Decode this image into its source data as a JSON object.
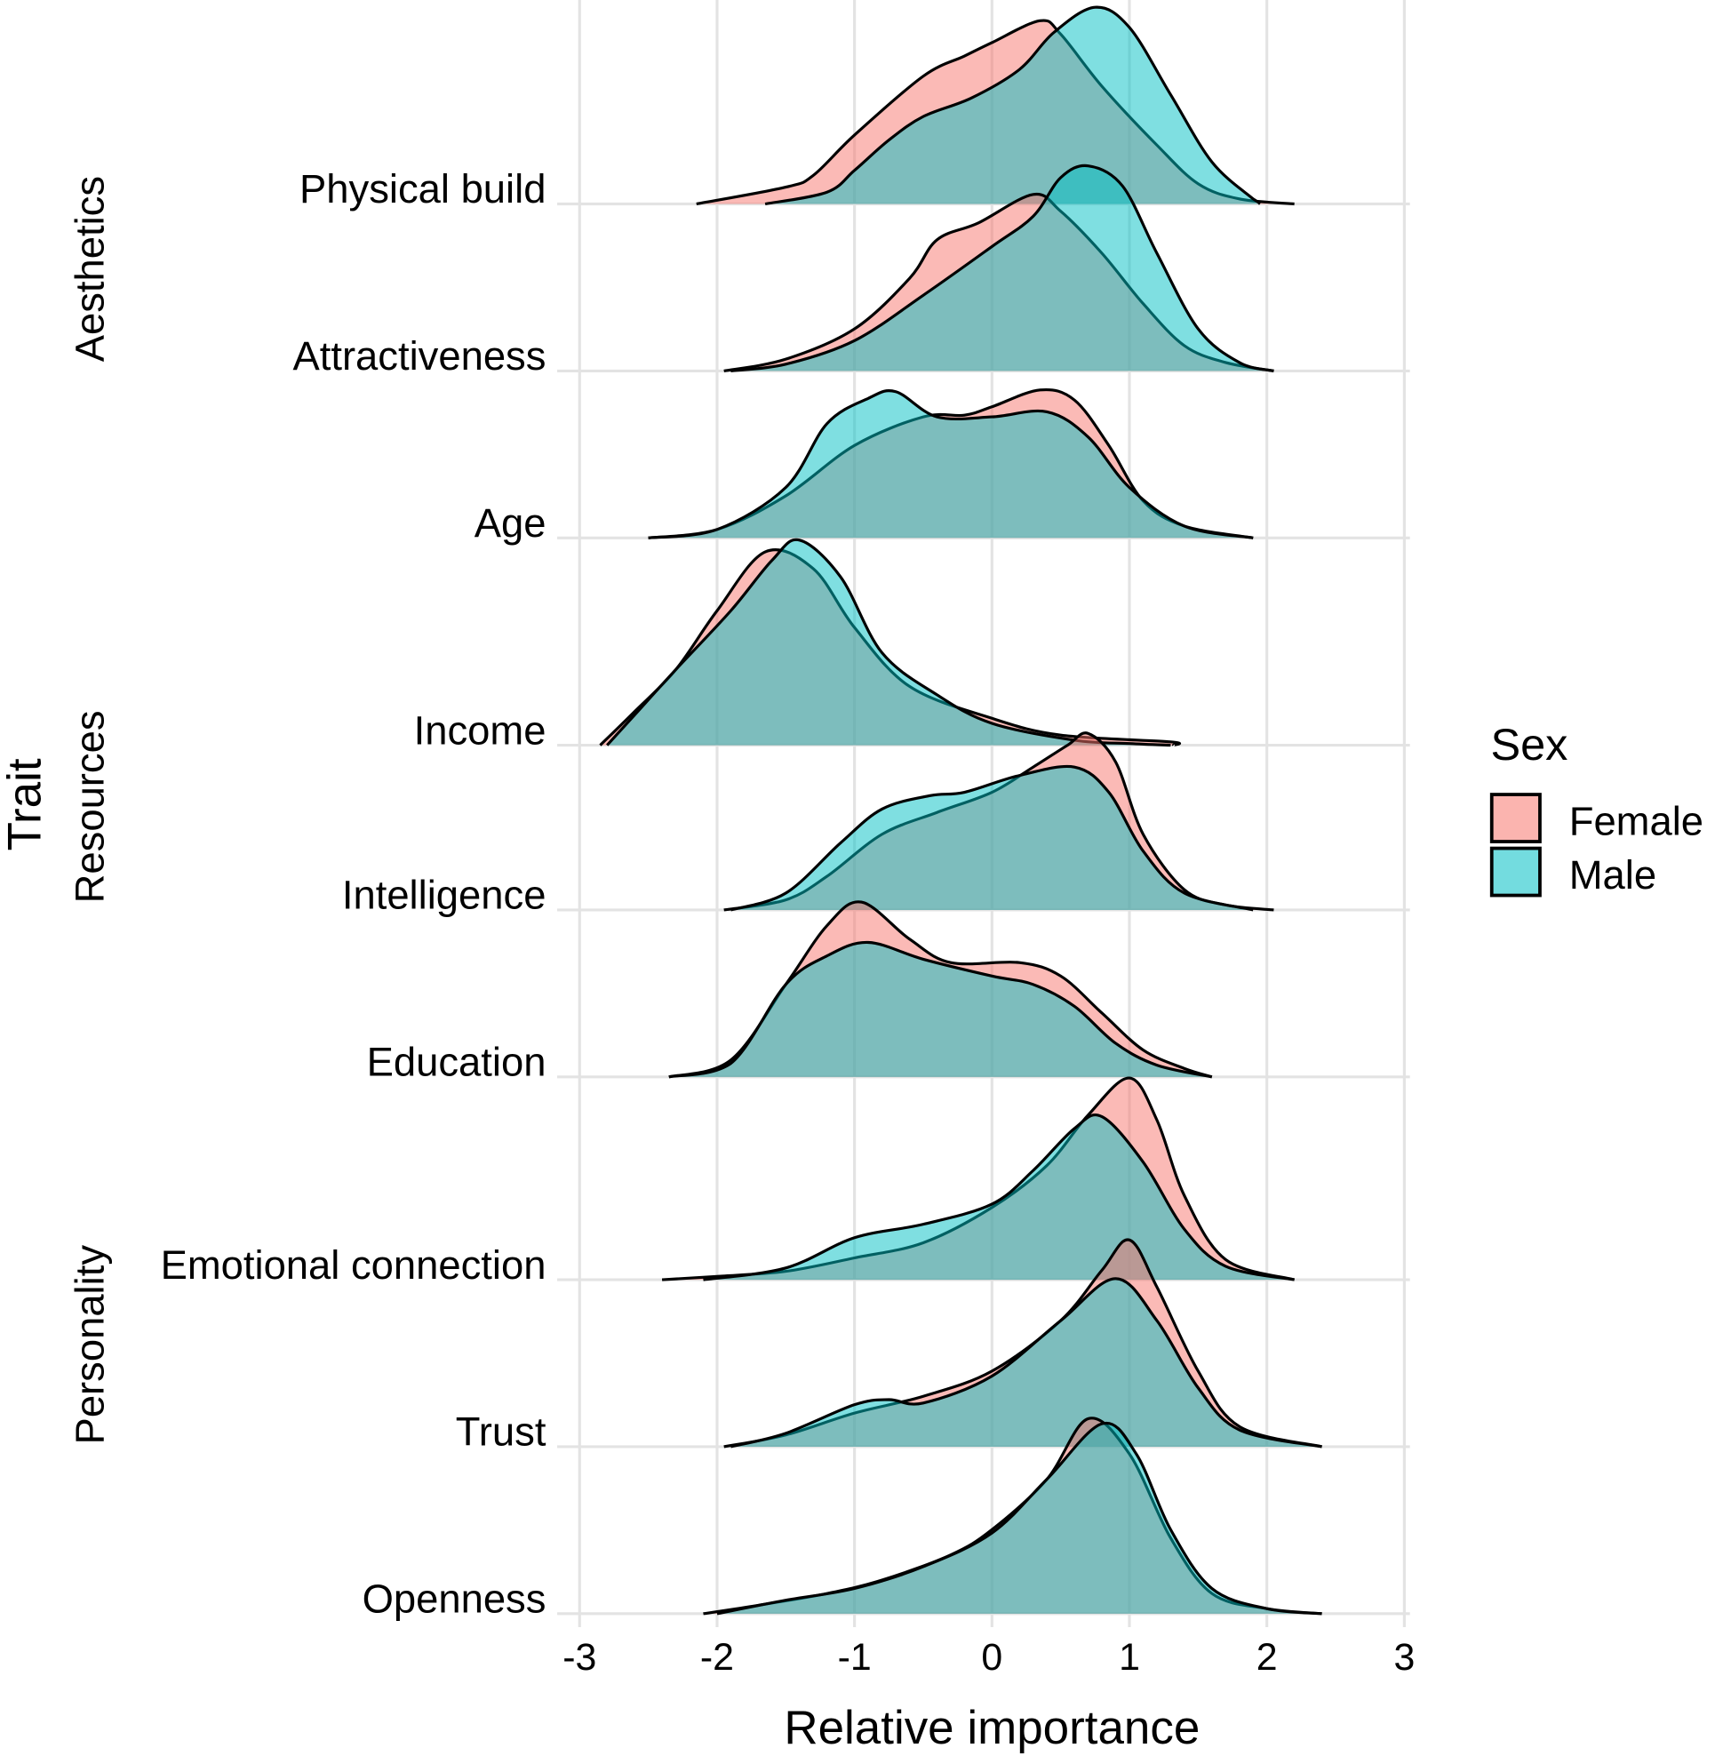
{
  "chart_data": {
    "type": "ridgeline density",
    "xlabel": "Relative importance",
    "ylabel": "Trait",
    "xlim": [
      -3,
      3
    ],
    "xticks": [
      -3,
      -2,
      -1,
      0,
      1,
      2,
      3
    ],
    "grid": true,
    "legend": {
      "title": "Sex",
      "placement": "right",
      "entries": [
        {
          "name": "Female",
          "color": "#F8766D"
        },
        {
          "name": "Male",
          "color": "#00BFC4"
        }
      ]
    },
    "groups": [
      {
        "label": "Aesthetics",
        "traits": [
          "Physical build",
          "Attractiveness"
        ]
      },
      {
        "label": "Resources",
        "traits": [
          "Age",
          "Income",
          "Intelligence",
          "Education"
        ]
      },
      {
        "label": "Personality",
        "traits": [
          "Emotional connection",
          "Trust",
          "Openness"
        ]
      }
    ],
    "density_unit_note": "relative ridge height",
    "traits": [
      {
        "name": "Physical build",
        "Female": [
          [
            -2.15,
            0
          ],
          [
            -1.5,
            0.1
          ],
          [
            -1.3,
            0.17
          ],
          [
            -1,
            0.41
          ],
          [
            -0.5,
            0.76
          ],
          [
            -0.2,
            0.88
          ],
          [
            0,
            0.96
          ],
          [
            0.35,
            1.09
          ],
          [
            0.5,
            1.01
          ],
          [
            0.8,
            0.7
          ],
          [
            1.2,
            0.35
          ],
          [
            1.5,
            0.12
          ],
          [
            1.8,
            0.03
          ],
          [
            2.2,
            0
          ]
        ],
        "Male": [
          [
            -1.65,
            0
          ],
          [
            -1.2,
            0.07
          ],
          [
            -1,
            0.2
          ],
          [
            -0.75,
            0.38
          ],
          [
            -0.5,
            0.52
          ],
          [
            -0.15,
            0.63
          ],
          [
            0.2,
            0.8
          ],
          [
            0.45,
            1.02
          ],
          [
            0.75,
            1.17
          ],
          [
            1.0,
            1.05
          ],
          [
            1.3,
            0.65
          ],
          [
            1.6,
            0.25
          ],
          [
            1.9,
            0.03
          ],
          [
            1.95,
            0
          ]
        ]
      },
      {
        "name": "Attractiveness",
        "Female": [
          [
            -1.95,
            0
          ],
          [
            -1.5,
            0.07
          ],
          [
            -1,
            0.25
          ],
          [
            -0.6,
            0.55
          ],
          [
            -0.4,
            0.78
          ],
          [
            -0.1,
            0.88
          ],
          [
            0.3,
            1.05
          ],
          [
            0.5,
            0.95
          ],
          [
            0.8,
            0.7
          ],
          [
            1.1,
            0.4
          ],
          [
            1.4,
            0.15
          ],
          [
            1.7,
            0.05
          ],
          [
            2.05,
            0
          ]
        ],
        "Male": [
          [
            -1.9,
            0
          ],
          [
            -1.5,
            0.04
          ],
          [
            -1,
            0.18
          ],
          [
            -0.5,
            0.45
          ],
          [
            0,
            0.74
          ],
          [
            0.3,
            0.92
          ],
          [
            0.5,
            1.15
          ],
          [
            0.7,
            1.22
          ],
          [
            0.95,
            1.1
          ],
          [
            1.2,
            0.7
          ],
          [
            1.5,
            0.25
          ],
          [
            1.8,
            0.05
          ],
          [
            2.05,
            0
          ]
        ]
      },
      {
        "name": "Age",
        "Female": [
          [
            -2.5,
            0
          ],
          [
            -2,
            0.05
          ],
          [
            -1.5,
            0.25
          ],
          [
            -1,
            0.55
          ],
          [
            -0.5,
            0.72
          ],
          [
            -0.2,
            0.73
          ],
          [
            0,
            0.78
          ],
          [
            0.35,
            0.88
          ],
          [
            0.6,
            0.82
          ],
          [
            0.85,
            0.55
          ],
          [
            1.1,
            0.22
          ],
          [
            1.4,
            0.07
          ],
          [
            1.9,
            0
          ]
        ],
        "Male": [
          [
            -2.5,
            0
          ],
          [
            -2,
            0.05
          ],
          [
            -1.5,
            0.3
          ],
          [
            -1.2,
            0.68
          ],
          [
            -0.9,
            0.83
          ],
          [
            -0.7,
            0.87
          ],
          [
            -0.4,
            0.72
          ],
          [
            0,
            0.72
          ],
          [
            0.4,
            0.75
          ],
          [
            0.7,
            0.6
          ],
          [
            1,
            0.3
          ],
          [
            1.4,
            0.07
          ],
          [
            1.9,
            0
          ]
        ]
      },
      {
        "name": "Income",
        "Female": [
          [
            -2.85,
            0
          ],
          [
            -2.6,
            0.2
          ],
          [
            -2.3,
            0.45
          ],
          [
            -2,
            0.8
          ],
          [
            -1.65,
            1.15
          ],
          [
            -1.3,
            1.05
          ],
          [
            -1,
            0.7
          ],
          [
            -0.6,
            0.35
          ],
          [
            0,
            0.16
          ],
          [
            0.5,
            0.06
          ],
          [
            1.3,
            0.02
          ],
          [
            1.32,
            0
          ]
        ],
        "Male": [
          [
            -2.8,
            0
          ],
          [
            -2.6,
            0.18
          ],
          [
            -2.3,
            0.45
          ],
          [
            -1.9,
            0.8
          ],
          [
            -1.6,
            1.1
          ],
          [
            -1.4,
            1.22
          ],
          [
            -1.1,
            1.0
          ],
          [
            -0.8,
            0.55
          ],
          [
            -0.4,
            0.3
          ],
          [
            0,
            0.13
          ],
          [
            0.6,
            0.03
          ],
          [
            1.0,
            0.01
          ],
          [
            1.3,
            0
          ]
        ]
      },
      {
        "name": "Intelligence",
        "Female": [
          [
            -1.95,
            0
          ],
          [
            -1.5,
            0.06
          ],
          [
            -1.2,
            0.2
          ],
          [
            -0.8,
            0.45
          ],
          [
            -0.4,
            0.58
          ],
          [
            0,
            0.7
          ],
          [
            0.3,
            0.85
          ],
          [
            0.55,
            0.98
          ],
          [
            0.7,
            1.05
          ],
          [
            0.9,
            0.88
          ],
          [
            1.1,
            0.45
          ],
          [
            1.4,
            0.12
          ],
          [
            1.7,
            0.03
          ],
          [
            2.05,
            0
          ]
        ],
        "Male": [
          [
            -1.9,
            0
          ],
          [
            -1.5,
            0.1
          ],
          [
            -1.1,
            0.4
          ],
          [
            -0.8,
            0.6
          ],
          [
            -0.45,
            0.68
          ],
          [
            -0.2,
            0.7
          ],
          [
            0.2,
            0.8
          ],
          [
            0.6,
            0.85
          ],
          [
            0.85,
            0.7
          ],
          [
            1.1,
            0.35
          ],
          [
            1.4,
            0.1
          ],
          [
            1.9,
            0
          ]
        ]
      },
      {
        "name": "Education",
        "Female": [
          [
            -2.35,
            0
          ],
          [
            -1.9,
            0.1
          ],
          [
            -1.5,
            0.55
          ],
          [
            -1.2,
            0.9
          ],
          [
            -0.95,
            1.04
          ],
          [
            -0.6,
            0.82
          ],
          [
            -0.3,
            0.68
          ],
          [
            0.2,
            0.68
          ],
          [
            0.5,
            0.6
          ],
          [
            0.8,
            0.38
          ],
          [
            1.1,
            0.16
          ],
          [
            1.4,
            0.05
          ],
          [
            1.6,
            0
          ]
        ],
        "Male": [
          [
            -2.35,
            0
          ],
          [
            -1.9,
            0.08
          ],
          [
            -1.5,
            0.55
          ],
          [
            -1.2,
            0.72
          ],
          [
            -0.9,
            0.8
          ],
          [
            -0.5,
            0.7
          ],
          [
            0,
            0.6
          ],
          [
            0.3,
            0.55
          ],
          [
            0.6,
            0.42
          ],
          [
            0.9,
            0.2
          ],
          [
            1.2,
            0.07
          ],
          [
            1.6,
            0
          ]
        ]
      },
      {
        "name": "Emotional connection",
        "Female": [
          [
            -2.4,
            0
          ],
          [
            -2,
            0.02
          ],
          [
            -1.5,
            0.05
          ],
          [
            -1,
            0.13
          ],
          [
            -0.5,
            0.22
          ],
          [
            0,
            0.43
          ],
          [
            0.4,
            0.68
          ],
          [
            0.7,
            0.98
          ],
          [
            1,
            1.2
          ],
          [
            1.2,
            0.95
          ],
          [
            1.4,
            0.5
          ],
          [
            1.7,
            0.12
          ],
          [
            2.2,
            0
          ]
        ],
        "Male": [
          [
            -2.1,
            0
          ],
          [
            -1.5,
            0.07
          ],
          [
            -1,
            0.25
          ],
          [
            -0.5,
            0.33
          ],
          [
            0,
            0.45
          ],
          [
            0.3,
            0.65
          ],
          [
            0.6,
            0.9
          ],
          [
            0.8,
            0.97
          ],
          [
            1.1,
            0.7
          ],
          [
            1.4,
            0.3
          ],
          [
            1.7,
            0.08
          ],
          [
            2.2,
            0
          ]
        ]
      },
      {
        "name": "Trust",
        "Female": [
          [
            -1.95,
            0
          ],
          [
            -1.5,
            0.07
          ],
          [
            -1,
            0.2
          ],
          [
            -0.5,
            0.3
          ],
          [
            0,
            0.45
          ],
          [
            0.5,
            0.75
          ],
          [
            0.8,
            1.05
          ],
          [
            1.0,
            1.23
          ],
          [
            1.2,
            0.95
          ],
          [
            1.5,
            0.45
          ],
          [
            1.8,
            0.12
          ],
          [
            2.4,
            0
          ]
        ],
        "Male": [
          [
            -1.9,
            0
          ],
          [
            -1.5,
            0.08
          ],
          [
            -1,
            0.25
          ],
          [
            -0.75,
            0.28
          ],
          [
            -0.5,
            0.26
          ],
          [
            0,
            0.42
          ],
          [
            0.5,
            0.75
          ],
          [
            0.9,
            1.0
          ],
          [
            1.2,
            0.75
          ],
          [
            1.5,
            0.35
          ],
          [
            1.8,
            0.1
          ],
          [
            2.4,
            0
          ]
        ]
      },
      {
        "name": "Openness",
        "Female": [
          [
            -2.1,
            0
          ],
          [
            -1.7,
            0.05
          ],
          [
            -1.2,
            0.12
          ],
          [
            -0.8,
            0.2
          ],
          [
            -0.3,
            0.35
          ],
          [
            0,
            0.5
          ],
          [
            0.4,
            0.8
          ],
          [
            0.7,
            1.16
          ],
          [
            1.0,
            0.95
          ],
          [
            1.3,
            0.45
          ],
          [
            1.6,
            0.12
          ],
          [
            2.0,
            0.03
          ],
          [
            2.4,
            0
          ]
        ],
        "Male": [
          [
            -2.0,
            0
          ],
          [
            -1.5,
            0.08
          ],
          [
            -1,
            0.15
          ],
          [
            -0.5,
            0.28
          ],
          [
            0,
            0.48
          ],
          [
            0.4,
            0.8
          ],
          [
            0.8,
            1.13
          ],
          [
            1.05,
            0.95
          ],
          [
            1.3,
            0.5
          ],
          [
            1.6,
            0.15
          ],
          [
            2.0,
            0.03
          ],
          [
            2.4,
            0
          ]
        ]
      }
    ]
  }
}
